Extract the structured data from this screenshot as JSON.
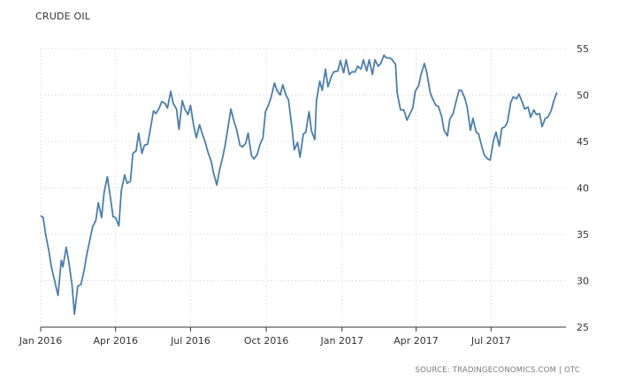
{
  "chart_data": {
    "type": "line",
    "title": "CRUDE OIL",
    "source": "SOURCE: TRADINGECONOMICS.COM | OTC",
    "xlabel": "",
    "ylabel": "",
    "ylim": [
      25,
      55
    ],
    "yticks": [
      "25",
      "30",
      "35",
      "40",
      "45",
      "50",
      "55"
    ],
    "xticks": [
      {
        "date": "2016-01-01",
        "label": "Jan 2016"
      },
      {
        "date": "2016-04-01",
        "label": "Apr 2016"
      },
      {
        "date": "2016-07-01",
        "label": "Jul 2016"
      },
      {
        "date": "2016-10-01",
        "label": "Oct 2016"
      },
      {
        "date": "2017-01-01",
        "label": "Jan 2017"
      },
      {
        "date": "2017-04-01",
        "label": "Apr 2017"
      },
      {
        "date": "2017-07-01",
        "label": "Jul 2017"
      }
    ],
    "grid": true,
    "legend": "none",
    "line_color": "#4a7eaf",
    "series": [
      {
        "x": [
          "2016-01-01",
          "2016-01-04",
          "2016-01-07",
          "2016-01-11",
          "2016-01-14",
          "2016-01-18",
          "2016-01-20",
          "2016-01-22",
          "2016-01-26",
          "2016-01-28",
          "2016-02-01",
          "2016-02-04",
          "2016-02-08",
          "2016-02-11",
          "2016-02-15",
          "2016-02-19",
          "2016-02-23",
          "2016-02-26",
          "2016-03-01",
          "2016-03-04",
          "2016-03-08",
          "2016-03-11",
          "2016-03-15",
          "2016-03-18",
          "2016-03-22",
          "2016-03-25",
          "2016-03-29",
          "2016-04-01",
          "2016-04-05",
          "2016-04-08",
          "2016-04-12",
          "2016-04-15",
          "2016-04-19",
          "2016-04-22",
          "2016-04-26",
          "2016-04-29",
          "2016-05-03",
          "2016-05-06",
          "2016-05-10",
          "2016-05-13",
          "2016-05-17",
          "2016-05-20",
          "2016-05-24",
          "2016-05-27",
          "2016-05-31",
          "2016-06-03",
          "2016-06-07",
          "2016-06-10",
          "2016-06-14",
          "2016-06-17",
          "2016-06-21",
          "2016-06-24",
          "2016-06-28",
          "2016-07-01",
          "2016-07-05",
          "2016-07-08",
          "2016-07-12",
          "2016-07-15",
          "2016-07-19",
          "2016-07-22",
          "2016-07-26",
          "2016-07-29",
          "2016-08-02",
          "2016-08-05",
          "2016-08-09",
          "2016-08-12",
          "2016-08-16",
          "2016-08-19",
          "2016-08-23",
          "2016-08-26",
          "2016-08-30",
          "2016-09-02",
          "2016-09-06",
          "2016-09-09",
          "2016-09-13",
          "2016-09-16",
          "2016-09-20",
          "2016-09-23",
          "2016-09-27",
          "2016-09-30",
          "2016-10-04",
          "2016-10-07",
          "2016-10-11",
          "2016-10-14",
          "2016-10-18",
          "2016-10-21",
          "2016-10-25",
          "2016-10-28",
          "2016-11-01",
          "2016-11-04",
          "2016-11-08",
          "2016-11-11",
          "2016-11-15",
          "2016-11-18",
          "2016-11-22",
          "2016-11-25",
          "2016-11-29",
          "2016-12-01",
          "2016-12-05",
          "2016-12-08",
          "2016-12-12",
          "2016-12-15",
          "2016-12-19",
          "2016-12-22",
          "2016-12-27",
          "2016-12-30",
          "2017-01-03",
          "2017-01-06",
          "2017-01-10",
          "2017-01-13",
          "2017-01-17",
          "2017-01-20",
          "2017-01-24",
          "2017-01-27",
          "2017-01-31",
          "2017-02-03",
          "2017-02-07",
          "2017-02-10",
          "2017-02-14",
          "2017-02-17",
          "2017-02-21",
          "2017-02-24",
          "2017-02-28",
          "2017-03-03",
          "2017-03-07",
          "2017-03-09",
          "2017-03-13",
          "2017-03-17",
          "2017-03-21",
          "2017-03-24",
          "2017-03-28",
          "2017-03-31",
          "2017-04-04",
          "2017-04-07",
          "2017-04-11",
          "2017-04-14",
          "2017-04-18",
          "2017-04-21",
          "2017-04-25",
          "2017-04-28",
          "2017-05-02",
          "2017-05-05",
          "2017-05-09",
          "2017-05-12",
          "2017-05-16",
          "2017-05-19",
          "2017-05-23",
          "2017-05-26",
          "2017-05-30",
          "2017-06-02",
          "2017-06-06",
          "2017-06-09",
          "2017-06-13",
          "2017-06-16",
          "2017-06-20",
          "2017-06-23",
          "2017-06-27",
          "2017-06-30",
          "2017-07-04",
          "2017-07-07",
          "2017-07-11",
          "2017-07-14",
          "2017-07-18",
          "2017-07-21",
          "2017-07-25",
          "2017-07-28",
          "2017-08-01",
          "2017-08-04",
          "2017-08-08",
          "2017-08-11",
          "2017-08-15",
          "2017-08-18",
          "2017-08-22",
          "2017-08-25",
          "2017-08-29",
          "2017-09-01",
          "2017-09-05",
          "2017-09-08",
          "2017-09-12",
          "2017-09-15",
          "2017-09-19"
        ],
        "y": [
          37.0,
          36.8,
          35.0,
          33.2,
          31.5,
          30.0,
          29.2,
          28.4,
          32.2,
          31.5,
          33.6,
          32.1,
          29.6,
          26.4,
          29.4,
          29.6,
          31.2,
          32.8,
          34.5,
          35.8,
          36.5,
          38.4,
          36.8,
          39.5,
          41.2,
          39.4,
          36.9,
          36.8,
          35.9,
          39.7,
          41.4,
          40.5,
          40.7,
          43.7,
          44.0,
          45.9,
          43.7,
          44.6,
          44.7,
          46.2,
          48.3,
          48.0,
          48.6,
          49.3,
          49.1,
          48.6,
          50.4,
          49.1,
          48.5,
          46.3,
          49.4,
          48.5,
          47.9,
          48.9,
          46.6,
          45.4,
          46.8,
          45.9,
          44.9,
          43.9,
          42.9,
          41.6,
          40.3,
          41.8,
          43.3,
          44.6,
          46.8,
          48.5,
          47.1,
          46.3,
          44.6,
          44.4,
          44.8,
          45.9,
          43.5,
          43.1,
          43.6,
          44.6,
          45.4,
          48.2,
          49.0,
          49.8,
          51.3,
          50.5,
          50.0,
          51.1,
          50.0,
          49.5,
          46.6,
          44.1,
          44.9,
          43.3,
          45.8,
          46.0,
          48.2,
          46.1,
          45.2,
          49.4,
          51.5,
          50.5,
          52.8,
          50.9,
          52.0,
          52.5,
          52.6,
          53.7,
          52.4,
          53.8,
          52.2,
          52.5,
          52.5,
          53.1,
          52.8,
          53.8,
          52.6,
          53.8,
          52.2,
          53.8,
          53.1,
          53.4,
          54.3,
          54.0,
          54.0,
          53.8,
          53.3,
          50.3,
          48.4,
          48.4,
          47.3,
          47.9,
          48.6,
          50.4,
          51.0,
          52.2,
          53.4,
          52.4,
          50.3,
          49.6,
          48.9,
          48.8,
          47.7,
          46.2,
          45.6,
          47.4,
          48.0,
          49.1,
          50.5,
          50.5,
          49.7,
          48.7,
          46.2,
          47.5,
          46.0,
          45.8,
          44.4,
          43.5,
          43.1,
          43.0,
          45.1,
          46.0,
          44.5,
          46.4,
          46.6,
          47.1,
          49.2,
          49.8,
          49.6,
          50.1,
          49.2,
          48.5,
          48.7,
          47.6,
          48.4,
          47.9,
          48.0,
          46.6,
          47.5,
          47.6,
          48.3,
          49.3,
          50.3
        ]
      }
    ]
  }
}
